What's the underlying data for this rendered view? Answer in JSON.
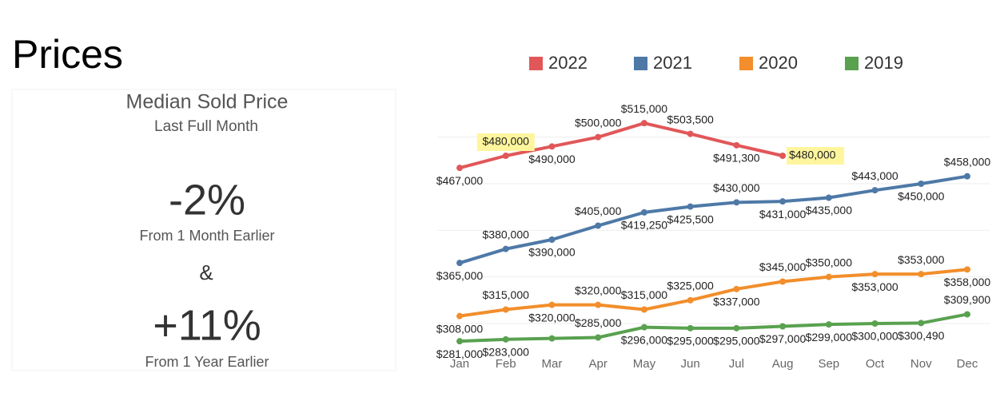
{
  "page_title": "Prices",
  "kpi": {
    "title": "Median Sold Price",
    "subtitle": "Last Full Month",
    "month_change": "-2%",
    "month_caption": "From 1 Month Earlier",
    "joiner": "&",
    "year_change": "+11%",
    "year_caption": "From 1 Year Earlier"
  },
  "chart_data": {
    "type": "line",
    "categories": [
      "Jan",
      "Feb",
      "Mar",
      "Apr",
      "May",
      "Jun",
      "Jul",
      "Aug",
      "Sep",
      "Oct",
      "Nov",
      "Dec"
    ],
    "ylim": [
      270000,
      540000
    ],
    "yticks": [
      300000,
      350000,
      400000,
      450000,
      500000
    ],
    "grid": true,
    "legend": "top",
    "series": [
      {
        "name": "2022",
        "color": "#e15759",
        "values": [
          467000,
          480000,
          490000,
          500000,
          515000,
          503500,
          491300,
          480000,
          null,
          null,
          null,
          null
        ],
        "value_labels": [
          "$467,000",
          "$480,000",
          "$490,000",
          "$500,000",
          "$515,000",
          "$503,500",
          "$491,300",
          "$480,000",
          null,
          null,
          null,
          null
        ],
        "highlight": [
          1,
          7
        ]
      },
      {
        "name": "2021",
        "color": "#4e79a7",
        "values": [
          365000,
          380000,
          390000,
          405000,
          419250,
          425500,
          430000,
          431000,
          435000,
          443000,
          450000,
          458000
        ],
        "value_labels": [
          "$365,000",
          "$380,000",
          "$390,000",
          "$405,000",
          "$419,250",
          "$425,500",
          "$430,000",
          "$431,000",
          "$435,000",
          "$443,000",
          "$450,000",
          "$458,000"
        ]
      },
      {
        "name": "2020",
        "color": "#f28e2b",
        "values": [
          308000,
          315000,
          320000,
          320000,
          315000,
          325000,
          337000,
          345000,
          350000,
          353000,
          353000,
          358000
        ],
        "value_labels": [
          "$308,000",
          "$315,000",
          "$320,000",
          "$320,000",
          "$315,000",
          "$325,000",
          "$337,000",
          "$345,000",
          "$350,000",
          "$353,000",
          "$353,000",
          "$358,000"
        ]
      },
      {
        "name": "2019",
        "color": "#59a14f",
        "values": [
          281000,
          283000,
          284000,
          285000,
          296000,
          295000,
          295000,
          297000,
          299000,
          300000,
          300490,
          309900
        ],
        "value_labels": [
          "$281,000",
          "$283,000",
          null,
          "$285,000",
          "$296,000",
          "$295,000",
          "$295,000",
          "$297,000",
          "$299,000",
          "$300,000",
          "$300,490",
          "$309,900"
        ]
      }
    ]
  }
}
